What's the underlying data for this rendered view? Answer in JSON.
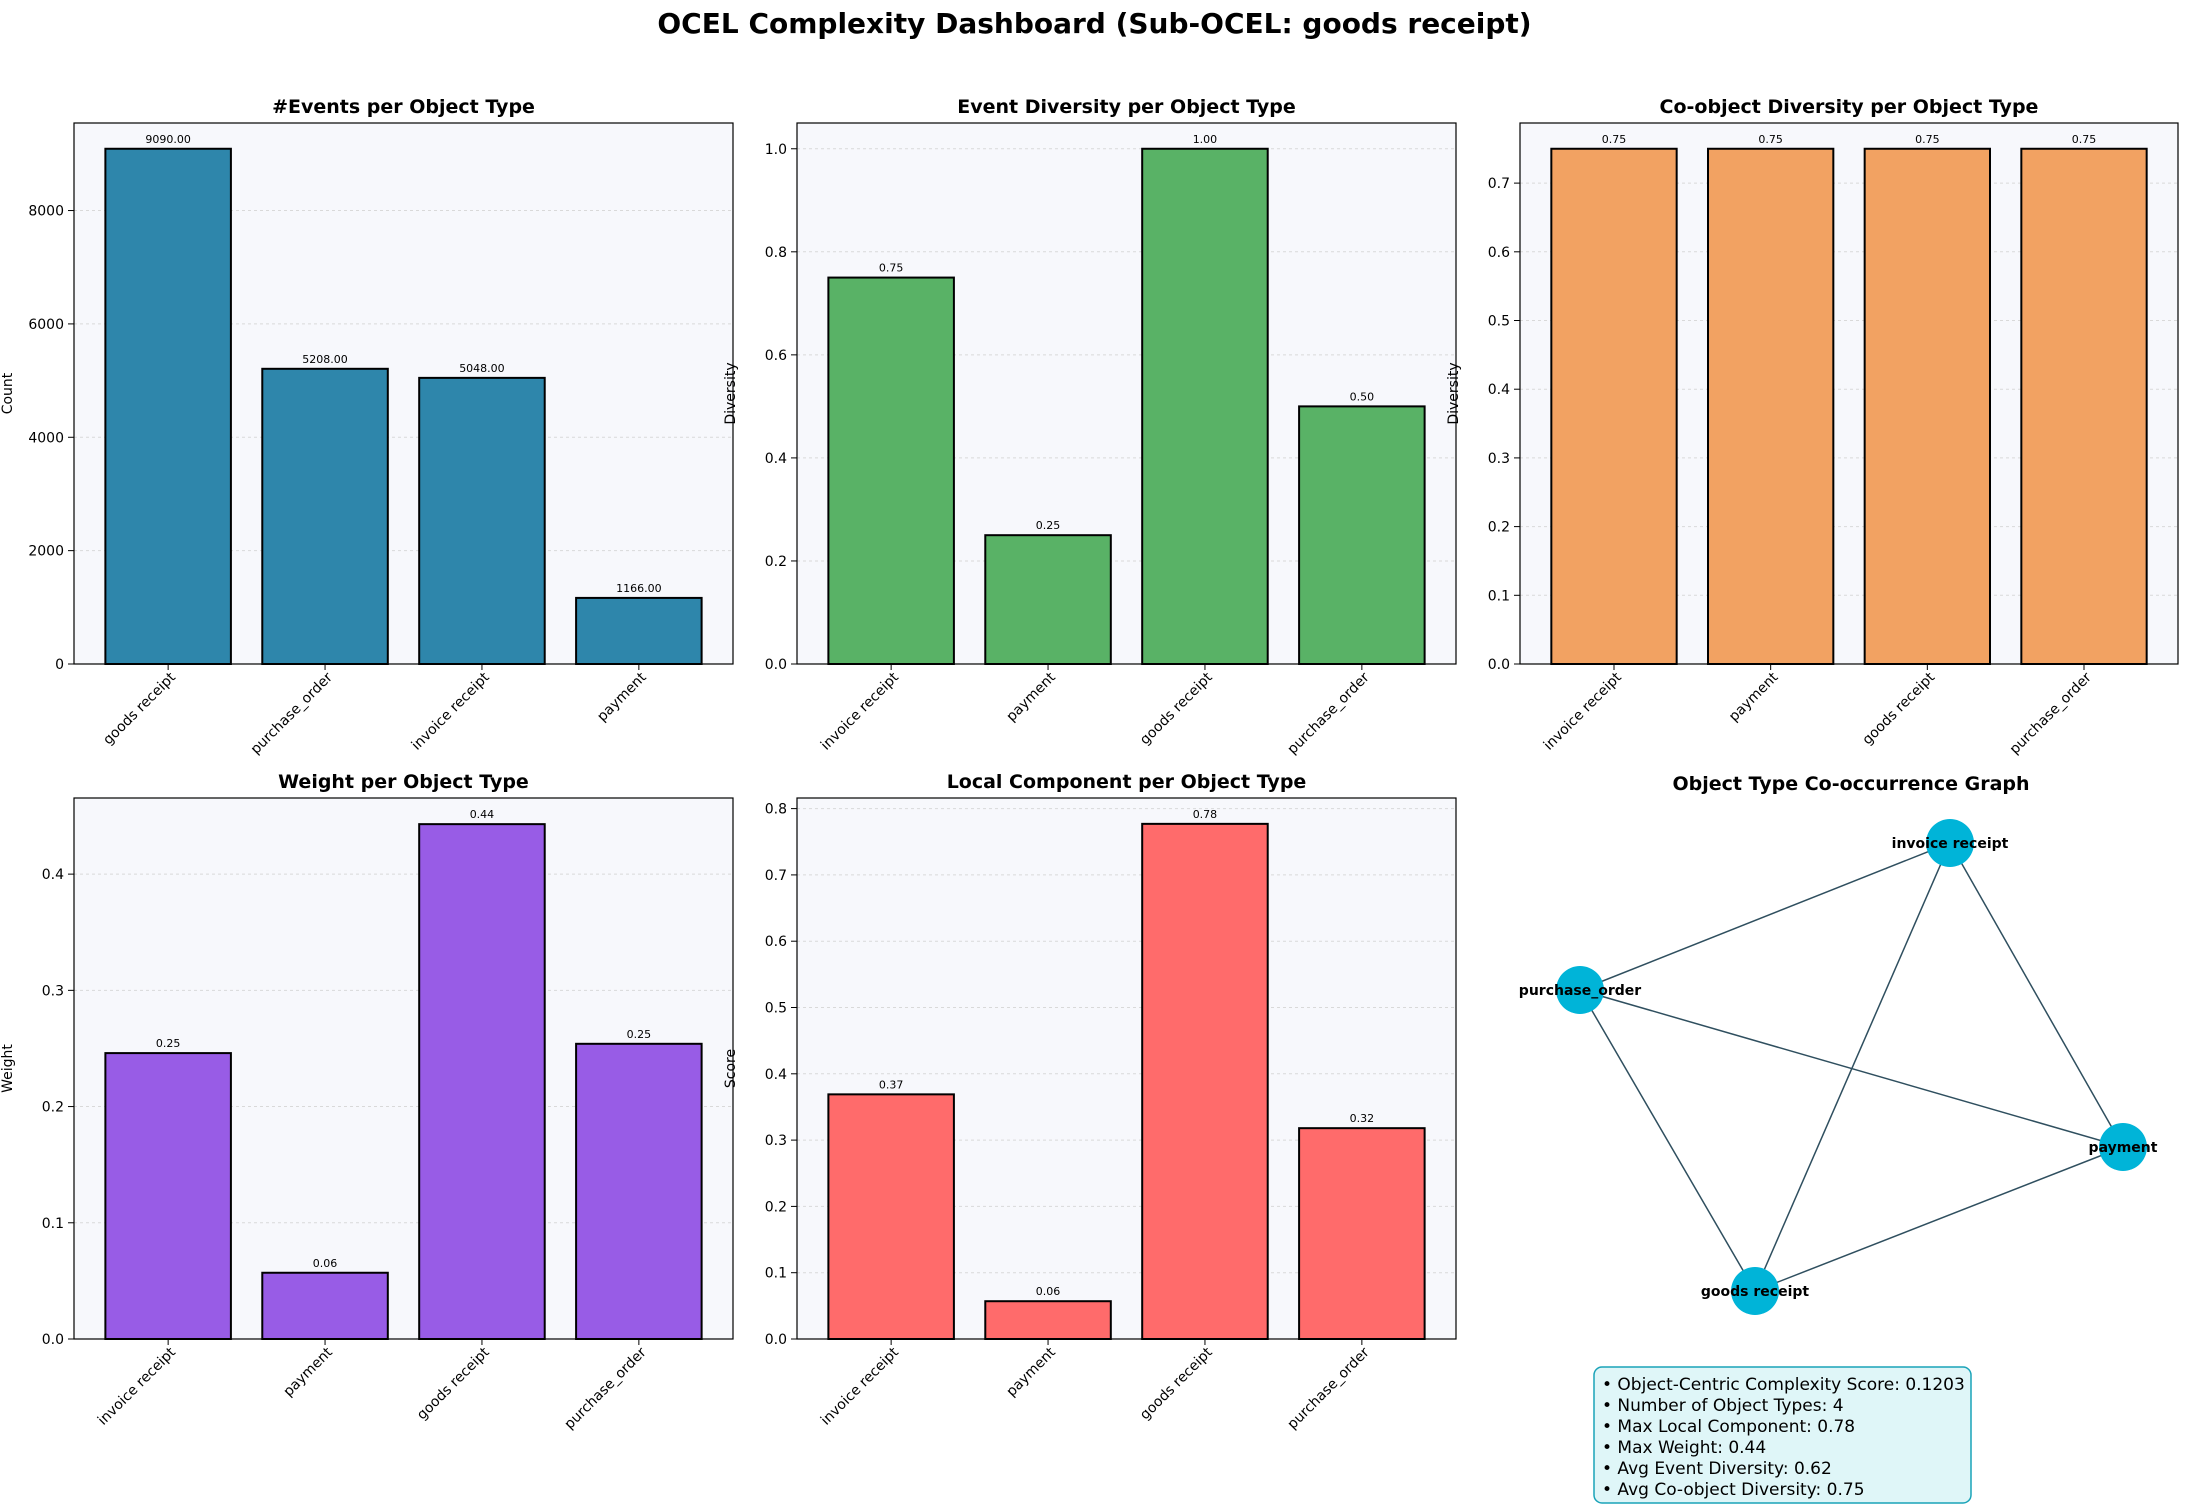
{
  "title": "OCEL Complexity Dashboard (Sub-OCEL: goods receipt)",
  "colors": {
    "background": "#ffffff",
    "plot_bg": "#f7f8fc",
    "grid": "#d9d9d9",
    "node": "#00b4d8",
    "edge": "#2f4f5f",
    "summary_bg": "#dff6f8",
    "summary_border": "#1aa3b8"
  },
  "chart_data": [
    {
      "id": "events",
      "type": "bar",
      "title": "#Events per Object Type",
      "xlabel": "",
      "ylabel": "Count",
      "categories": [
        "goods receipt",
        "purchase_order",
        "invoice receipt",
        "payment"
      ],
      "values": [
        9090,
        5208,
        5048,
        1166
      ],
      "value_labels": [
        "9090.00",
        "5208.00",
        "5048.00",
        "1166.00"
      ],
      "ylim": [
        0,
        9544.5
      ],
      "yticks": [
        0,
        2000,
        4000,
        6000,
        8000
      ],
      "ytick_labels": [
        "0",
        "2000",
        "4000",
        "6000",
        "8000"
      ],
      "color": "#2e86ab",
      "grid": true
    },
    {
      "id": "event-diversity",
      "type": "bar",
      "title": "Event Diversity per Object Type",
      "xlabel": "",
      "ylabel": "Diversity",
      "categories": [
        "invoice receipt",
        "payment",
        "goods receipt",
        "purchase_order"
      ],
      "values": [
        0.75,
        0.25,
        1.0,
        0.5
      ],
      "value_labels": [
        "0.75",
        "0.25",
        "1.00",
        "0.50"
      ],
      "ylim": [
        0,
        1.05
      ],
      "yticks": [
        0,
        0.2,
        0.4,
        0.6,
        0.8,
        1.0
      ],
      "ytick_labels": [
        "0.0",
        "0.2",
        "0.4",
        "0.6",
        "0.8",
        "1.0"
      ],
      "color": "#59b266",
      "grid": true
    },
    {
      "id": "co-object-diversity",
      "type": "bar",
      "title": "Co-object Diversity per Object Type",
      "xlabel": "",
      "ylabel": "Diversity",
      "categories": [
        "invoice receipt",
        "payment",
        "goods receipt",
        "purchase_order"
      ],
      "values": [
        0.75,
        0.75,
        0.75,
        0.75
      ],
      "value_labels": [
        "0.75",
        "0.75",
        "0.75",
        "0.75"
      ],
      "ylim": [
        0,
        0.7875
      ],
      "yticks": [
        0,
        0.1,
        0.2,
        0.3,
        0.4,
        0.5,
        0.6,
        0.7
      ],
      "ytick_labels": [
        "0.0",
        "0.1",
        "0.2",
        "0.3",
        "0.4",
        "0.5",
        "0.6",
        "0.7"
      ],
      "color": "#f2a262",
      "grid": true
    },
    {
      "id": "weight",
      "type": "bar",
      "title": "Weight per Object Type",
      "xlabel": "",
      "ylabel": "Weight",
      "categories": [
        "invoice receipt",
        "payment",
        "goods receipt",
        "purchase_order"
      ],
      "values": [
        0.246,
        0.057,
        0.443,
        0.254
      ],
      "value_labels": [
        "0.25",
        "0.06",
        "0.44",
        "0.25"
      ],
      "ylim": [
        0,
        0.4655
      ],
      "yticks": [
        0,
        0.1,
        0.2,
        0.3,
        0.4
      ],
      "ytick_labels": [
        "0.0",
        "0.1",
        "0.2",
        "0.3",
        "0.4"
      ],
      "color": "#985ce6",
      "grid": true
    },
    {
      "id": "local-component",
      "type": "bar",
      "title": "Local Component per Object Type",
      "xlabel": "",
      "ylabel": "Score",
      "categories": [
        "invoice receipt",
        "payment",
        "goods receipt",
        "purchase_order"
      ],
      "values": [
        0.369,
        0.057,
        0.777,
        0.318
      ],
      "value_labels": [
        "0.37",
        "0.06",
        "0.78",
        "0.32"
      ],
      "ylim": [
        0,
        0.816
      ],
      "yticks": [
        0,
        0.1,
        0.2,
        0.3,
        0.4,
        0.5,
        0.6,
        0.7,
        0.8
      ],
      "ytick_labels": [
        "0.0",
        "0.1",
        "0.2",
        "0.3",
        "0.4",
        "0.5",
        "0.6",
        "0.7",
        "0.8"
      ],
      "color": "#ff6b6b",
      "grid": true
    }
  ],
  "graph": {
    "title": "Object Type Co-occurrence Graph",
    "nodes": [
      "invoice receipt",
      "purchase_order",
      "payment",
      "goods receipt"
    ],
    "edges": [
      [
        "invoice receipt",
        "purchase_order"
      ],
      [
        "invoice receipt",
        "payment"
      ],
      [
        "invoice receipt",
        "goods receipt"
      ],
      [
        "purchase_order",
        "payment"
      ],
      [
        "purchase_order",
        "goods receipt"
      ],
      [
        "payment",
        "goods receipt"
      ]
    ]
  },
  "summary": {
    "lines": [
      "• Object-Centric Complexity Score: 0.1203",
      "• Number of Object Types: 4",
      "• Max Local Component: 0.78",
      "• Max Weight: 0.44",
      "• Avg Event Diversity: 0.62",
      "• Avg Co-object Diversity: 0.75"
    ]
  }
}
